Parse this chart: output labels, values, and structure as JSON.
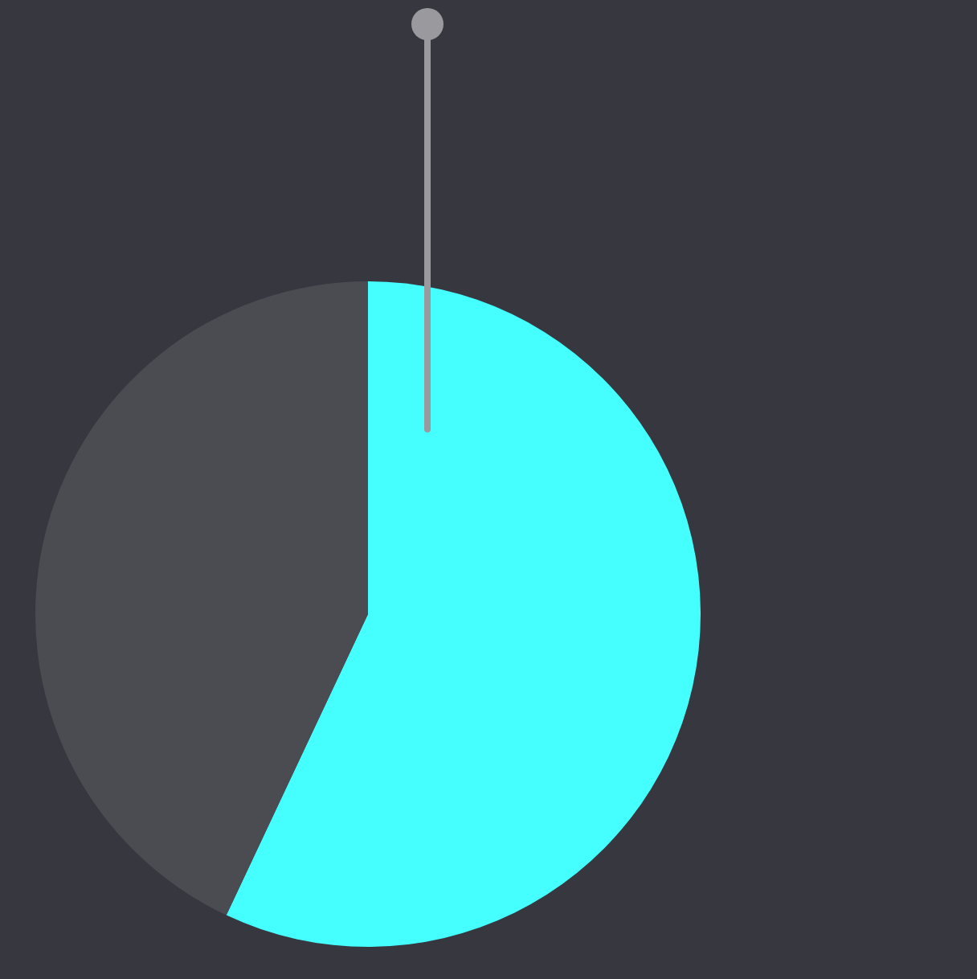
{
  "chart_data": {
    "type": "pie",
    "categories": [
      null,
      null
    ],
    "values": [
      57,
      43
    ],
    "colors": [
      "#45ffff",
      "#4b4c52"
    ],
    "legend": false
  }
}
